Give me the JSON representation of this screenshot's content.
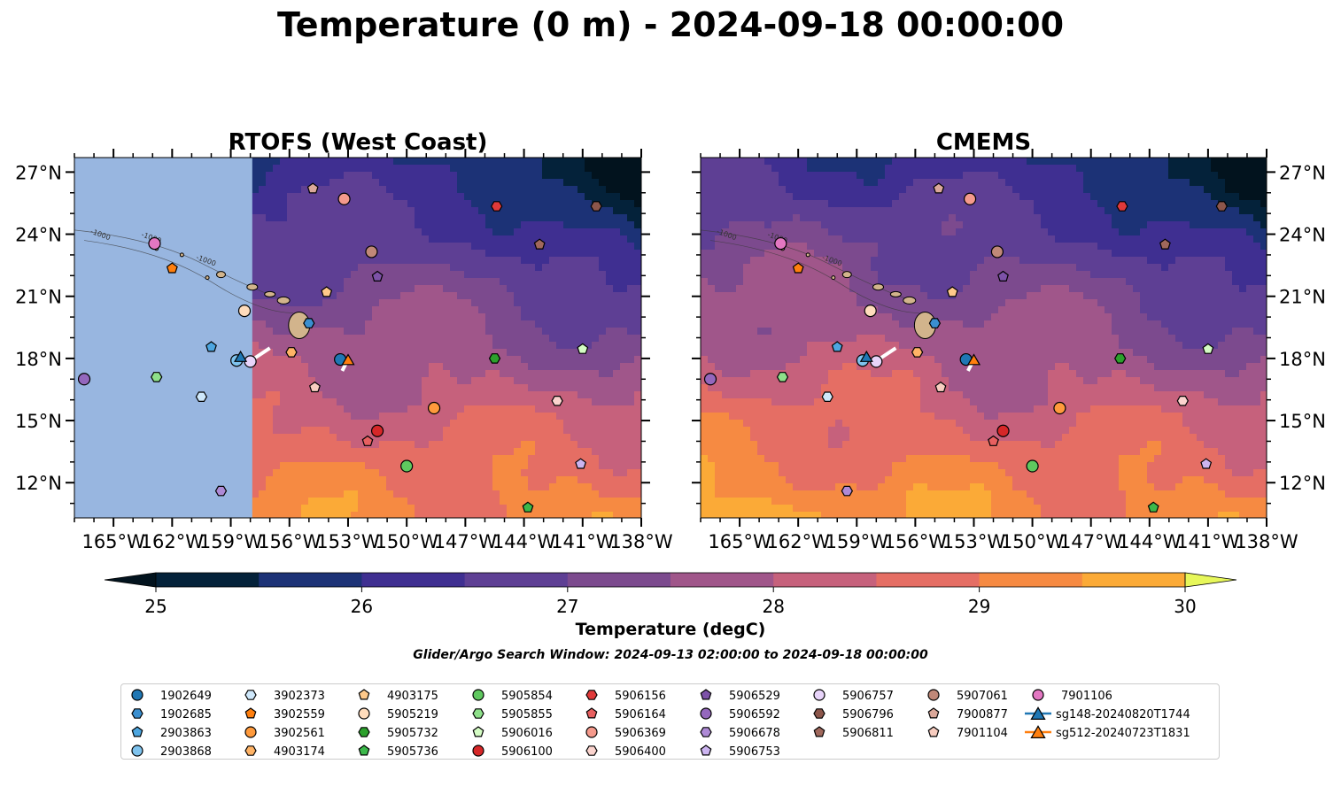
{
  "title": "Temperature (0 m) - 2024-09-18 00:00:00",
  "search_window": "Glider/Argo Search Window: 2024-09-13 02:00:00 to 2024-09-18 00:00:00",
  "colorbar": {
    "label": "Temperature (degC)",
    "ticks": [
      "25",
      "26",
      "27",
      "28",
      "29",
      "30"
    ],
    "range": [
      25,
      30
    ],
    "extend": "both",
    "levels": [
      25,
      25.5,
      26,
      26.5,
      27,
      27.5,
      28,
      28.5,
      29,
      29.5,
      30
    ],
    "colors": [
      "#04223a",
      "#1c3276",
      "#3f2f91",
      "#5e3f94",
      "#7c4a8e",
      "#a0568a",
      "#c6617c",
      "#e56e64",
      "#f68a42",
      "#fbaa37",
      "#f7d43e"
    ],
    "under_color": "#02131e",
    "over_color": "#e7f75a"
  },
  "chart_data": [
    {
      "type": "heatmap",
      "title": "RTOFS (West Coast)",
      "x_ticks": [
        "165°W",
        "162°W",
        "159°W",
        "156°W",
        "153°W",
        "150°W",
        "147°W",
        "144°W",
        "141°W",
        "138°W"
      ],
      "y_ticks": [
        "27°N",
        "24°N",
        "21°N",
        "18°N",
        "15°N",
        "12°N"
      ],
      "xlim": [
        -167,
        -138
      ],
      "ylim": [
        10.3,
        27.7
      ],
      "y_axis_side": "left",
      "no_data_west_of": -157.9,
      "no_data_color": "#98b6e0"
    },
    {
      "type": "heatmap",
      "title": "CMEMS",
      "x_ticks": [
        "165°W",
        "162°W",
        "159°W",
        "156°W",
        "153°W",
        "150°W",
        "147°W",
        "144°W",
        "141°W",
        "138°W"
      ],
      "y_ticks": [
        "27°N",
        "24°N",
        "21°N",
        "18°N",
        "15°N",
        "12°N"
      ],
      "xlim": [
        -167,
        -138
      ],
      "ylim": [
        10.3,
        27.7
      ],
      "y_axis_side": "right"
    }
  ],
  "bathymetry_contour_label": "-1000",
  "observations": [
    {
      "id": "1902649",
      "marker": "circle",
      "color": "#1f77b4",
      "lon": -153.4,
      "lat": 17.95
    },
    {
      "id": "1902685",
      "marker": "hexagon",
      "color": "#3a8fd0",
      "lon": -155.0,
      "lat": 19.7
    },
    {
      "id": "2903863",
      "marker": "pentagon",
      "color": "#4da6e0",
      "lon": -160.0,
      "lat": 18.55
    },
    {
      "id": "2903868",
      "marker": "circle",
      "color": "#7fc3ee",
      "lon": -158.7,
      "lat": 17.9
    },
    {
      "id": "3902373",
      "marker": "hexagon",
      "color": "#cfe8fb",
      "lon": -160.5,
      "lat": 16.15
    },
    {
      "id": "3902559",
      "marker": "pentagon",
      "color": "#ff7f0e",
      "lon": -162.0,
      "lat": 22.35
    },
    {
      "id": "3902561",
      "marker": "circle",
      "color": "#ff9a3c",
      "lon": -148.6,
      "lat": 15.6
    },
    {
      "id": "4903174",
      "marker": "hexagon",
      "color": "#ffb366",
      "lon": -155.9,
      "lat": 18.3
    },
    {
      "id": "4903175",
      "marker": "pentagon",
      "color": "#ffc98a",
      "lon": -154.1,
      "lat": 21.2
    },
    {
      "id": "5905219",
      "marker": "circle",
      "color": "#ffdcbc",
      "lon": -158.3,
      "lat": 20.3
    },
    {
      "id": "5905732",
      "marker": "hexagon",
      "color": "#2ca02c",
      "lon": -145.5,
      "lat": 18.0
    },
    {
      "id": "5905736",
      "marker": "pentagon",
      "color": "#3cb84a",
      "lon": -143.8,
      "lat": 10.8
    },
    {
      "id": "5905854",
      "marker": "circle",
      "color": "#5fc85f",
      "lon": -150.0,
      "lat": 12.8
    },
    {
      "id": "5905855",
      "marker": "hexagon",
      "color": "#8ee08a",
      "lon": -162.8,
      "lat": 17.1
    },
    {
      "id": "5906016",
      "marker": "pentagon",
      "color": "#d4fcc4",
      "lon": -141.0,
      "lat": 18.45
    },
    {
      "id": "5906100",
      "marker": "circle",
      "color": "#d62728",
      "lon": -151.5,
      "lat": 14.5
    },
    {
      "id": "5906156",
      "marker": "hexagon",
      "color": "#e0393a",
      "lon": -145.4,
      "lat": 25.35
    },
    {
      "id": "5906164",
      "marker": "pentagon",
      "color": "#e86060",
      "lon": -152.0,
      "lat": 14.0
    },
    {
      "id": "5906369",
      "marker": "circle",
      "color": "#f59a8c",
      "lon": -153.2,
      "lat": 25.7
    },
    {
      "id": "5906400",
      "marker": "hexagon",
      "color": "#fbd4ce",
      "lon": -142.3,
      "lat": 15.95
    },
    {
      "id": "5906529",
      "marker": "pentagon",
      "color": "#7d52a8",
      "lon": -151.5,
      "lat": 21.95
    },
    {
      "id": "5906592",
      "marker": "circle",
      "color": "#9467bd",
      "lon": -166.5,
      "lat": 17.0
    },
    {
      "id": "5906678",
      "marker": "hexagon",
      "color": "#ae8ad6",
      "lon": -159.5,
      "lat": 11.6
    },
    {
      "id": "5906753",
      "marker": "pentagon",
      "color": "#ccb4f0",
      "lon": -141.1,
      "lat": 12.9
    },
    {
      "id": "5906757",
      "marker": "circle",
      "color": "#e8d4fa",
      "lon": -158.0,
      "lat": 17.85
    },
    {
      "id": "5906796",
      "marker": "hexagon",
      "color": "#8c564b",
      "lon": -140.3,
      "lat": 25.35
    },
    {
      "id": "5906811",
      "marker": "pentagon",
      "color": "#a0685c",
      "lon": -143.2,
      "lat": 23.5
    },
    {
      "id": "5907061",
      "marker": "circle",
      "color": "#c08878",
      "lon": -151.8,
      "lat": 23.15
    },
    {
      "id": "7900877",
      "marker": "pentagon",
      "color": "#dba89a",
      "lon": -154.8,
      "lat": 26.2
    },
    {
      "id": "7901104",
      "marker": "pentagon",
      "color": "#f8cdc0",
      "lon": -154.7,
      "lat": 16.6
    },
    {
      "id": "7901106",
      "marker": "circle",
      "color": "#e377c2",
      "lon": -162.9,
      "lat": 23.55
    },
    {
      "id": "sg148-20240820T1744",
      "marker": "triangle",
      "color": "#1f77b4",
      "lon": -158.5,
      "lat": 18.1,
      "line": true
    },
    {
      "id": "sg512-20240723T1831",
      "marker": "triangle",
      "color": "#ff7f0e",
      "lon": -153.0,
      "lat": 17.95,
      "line": true
    }
  ],
  "legend_columns": [
    [
      "1902649",
      "1902685",
      "2903863",
      "2903868"
    ],
    [
      "3902373",
      "3902559",
      "3902561",
      "4903174"
    ],
    [
      "4903175",
      "5905219",
      "5905732",
      "5905736"
    ],
    [
      "5905854",
      "5905855",
      "5906016",
      "5906100"
    ],
    [
      "5906156",
      "5906164",
      "5906369",
      "5906400"
    ],
    [
      "5906529",
      "5906592",
      "5906678",
      "5906753"
    ],
    [
      "5906757",
      "5906796",
      "5906811"
    ],
    [
      "5907061",
      "7900877",
      "7901104"
    ],
    [
      "7901106",
      "sg148-20240820T1744",
      "sg512-20240723T1831"
    ]
  ]
}
